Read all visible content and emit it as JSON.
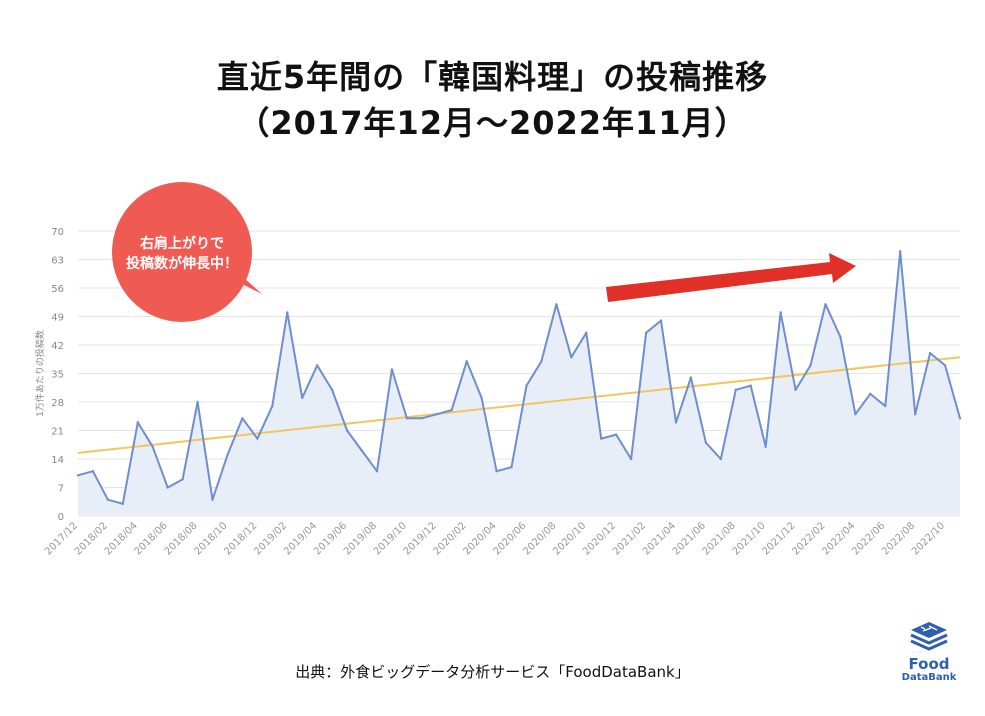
{
  "title_line1": "直近5年間の「韓国料理」の投稿推移",
  "title_line2": "（2017年12月～2022年11月）",
  "callout": {
    "line1": "右肩上がりで",
    "line2": "投稿数が伸長中！",
    "color": "#ef5b53"
  },
  "source": "出典：外食ビッグデータ分析サービス「FoodDataBank」",
  "logo": {
    "line1": "Food",
    "line2": "DataBank",
    "color": "#2f5fae"
  },
  "colors": {
    "line": "#6f8ed0",
    "area": "#e8eef8",
    "trend": "#f2c65b",
    "arrow": "#e03028",
    "grid": "#e4e4e4",
    "tick": "#888888"
  },
  "chart_data": {
    "type": "line",
    "title": "",
    "ylabel": "1万件あたりの投稿数",
    "xlabel": "",
    "ylim": [
      0,
      70
    ],
    "yticks": [
      0,
      7,
      14,
      21,
      28,
      35,
      42,
      49,
      56,
      63,
      70
    ],
    "grid": true,
    "x": [
      "2017/12",
      "2018/01",
      "2018/02",
      "2018/03",
      "2018/04",
      "2018/05",
      "2018/06",
      "2018/07",
      "2018/08",
      "2018/09",
      "2018/10",
      "2018/11",
      "2018/12",
      "2019/01",
      "2019/02",
      "2019/03",
      "2019/04",
      "2019/05",
      "2019/06",
      "2019/07",
      "2019/08",
      "2019/09",
      "2019/10",
      "2019/11",
      "2019/12",
      "2020/01",
      "2020/02",
      "2020/03",
      "2020/04",
      "2020/05",
      "2020/06",
      "2020/07",
      "2020/08",
      "2020/09",
      "2020/10",
      "2020/11",
      "2020/12",
      "2021/01",
      "2021/02",
      "2021/03",
      "2021/04",
      "2021/05",
      "2021/06",
      "2021/07",
      "2021/08",
      "2021/09",
      "2021/10",
      "2021/11",
      "2021/12",
      "2022/01",
      "2022/02",
      "2022/03",
      "2022/04",
      "2022/05",
      "2022/06",
      "2022/07",
      "2022/08",
      "2022/09",
      "2022/10",
      "2022/11"
    ],
    "x_tick_labels": [
      "2017/12",
      "2018/02",
      "2018/04",
      "2018/06",
      "2018/08",
      "2018/10",
      "2018/12",
      "2019/02",
      "2019/04",
      "2019/06",
      "2019/08",
      "2019/10",
      "2019/12",
      "2020/02",
      "2020/04",
      "2020/06",
      "2020/08",
      "2020/10",
      "2020/12",
      "2021/02",
      "2021/04",
      "2021/06",
      "2021/08",
      "2021/10",
      "2021/12",
      "2022/02",
      "2022/04",
      "2022/06",
      "2022/08",
      "2022/10"
    ],
    "series": [
      {
        "values": [
          10,
          11,
          4,
          3,
          23,
          17,
          7,
          9,
          28,
          4,
          15,
          24,
          19,
          27,
          50,
          29,
          37,
          31,
          21,
          16,
          11,
          36,
          24,
          24,
          25,
          26,
          38,
          29,
          11,
          12,
          32,
          38,
          52,
          39,
          45,
          19,
          20,
          14,
          45,
          48,
          23,
          34,
          18,
          14,
          31,
          32,
          17,
          50,
          31,
          37,
          52,
          44,
          25,
          30,
          27,
          65,
          25,
          40,
          37,
          24
        ]
      }
    ],
    "trendline": {
      "start": 15.5,
      "end": 39
    }
  }
}
